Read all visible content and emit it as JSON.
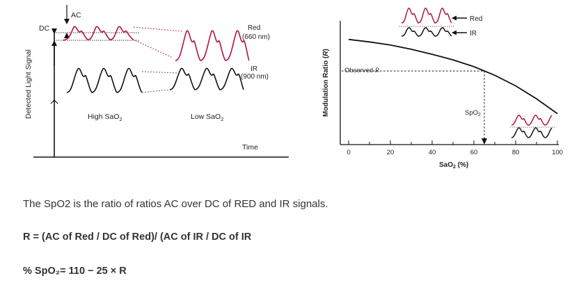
{
  "left_diagram": {
    "ac_label": "AC",
    "dc_label": "DC",
    "y_axis_label": "Detected Light Signal",
    "red_label_line1": "Red",
    "red_label_line2": "(660 nm)",
    "ir_label_line1": "IR",
    "ir_label_line2": "(900 nm)",
    "high_sao2_prefix": "High SaO",
    "low_sao2_prefix": "Low SaO",
    "subscript_2": "2",
    "time_label": "Time"
  },
  "right_chart": {
    "ylabel_text": "Modulation Ratio (",
    "ylabel_var": "R",
    "ylabel_close": ")",
    "xlabel_prefix": "SaO",
    "xlabel_sub": "2",
    "xlabel_suffix": " (%)",
    "observed_label": "Observed ",
    "observed_var": "R",
    "spo2_prefix": "SpO",
    "spo2_sub": "2",
    "legend_red": "Red",
    "legend_ir": "IR",
    "colors": {
      "red": "#b5123f",
      "black": "#111111"
    }
  },
  "chart_data": {
    "type": "line",
    "x": [
      0,
      10,
      20,
      30,
      40,
      50,
      60,
      70,
      80,
      90,
      100
    ],
    "series": [
      {
        "values": [
          3.4,
          3.32,
          3.22,
          3.08,
          2.92,
          2.74,
          2.52,
          2.24,
          1.9,
          1.48,
          1.0
        ]
      }
    ],
    "xticks": [
      "0",
      "20",
      "40",
      "60",
      "80",
      "100"
    ],
    "xlim": [
      0,
      100
    ],
    "ylim": [
      0,
      4
    ],
    "observed_point": {
      "x": 65,
      "y": 2.38
    },
    "title": "",
    "xlabel": "SaO2 (%)",
    "ylabel": "Modulation Ratio (R)"
  },
  "captions": {
    "line1": "The SpO2 is the ratio of ratios AC over DC of RED and IR signals.",
    "line2": "R = (AC of Red / DC of Red)/ (AC of IR / DC of IR",
    "line3": "% SpO₂= 110 − 25 × R"
  }
}
